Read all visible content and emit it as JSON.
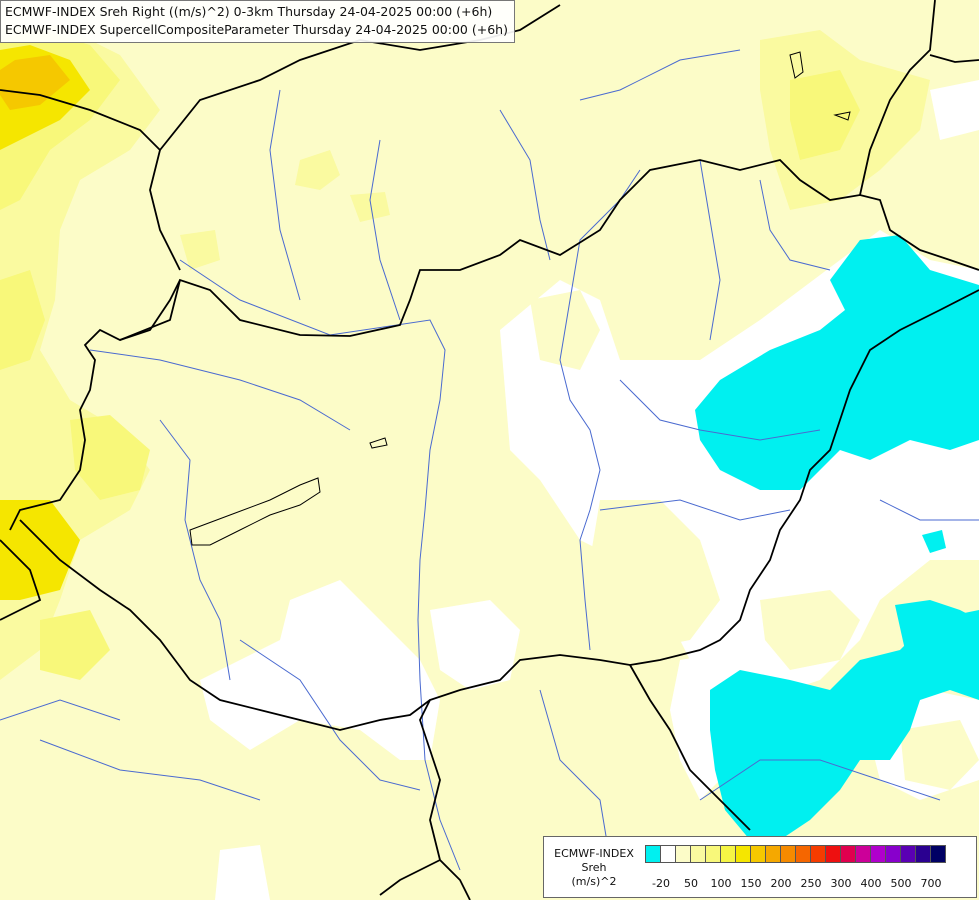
{
  "title_lines": [
    "ECMWF-INDEX Sreh Right ((m/s)^2) 0-3km Thursday 24-04-2025 00:00 (+6h)",
    "ECMWF-INDEX SupercellCompositeParameter Thursday 24-04-2025 00:00 (+6h)"
  ],
  "legend": {
    "title_lines": [
      "ECMWF-INDEX",
      "Sreh",
      "(m/s)^2"
    ],
    "colors": [
      "#00f0f0",
      "#ffffff",
      "#fcfcc8",
      "#fafaa0",
      "#f8f87a",
      "#f5f545",
      "#f5e600",
      "#f5c800",
      "#f5a800",
      "#f58a00",
      "#f56600",
      "#f53c00",
      "#ee1010",
      "#e0004e",
      "#cc0099",
      "#b000cc",
      "#8800cc",
      "#5a00b4",
      "#2a0090",
      "#000064"
    ],
    "ticks": [
      "-20",
      "50",
      "100",
      "150",
      "200",
      "250",
      "300",
      "400",
      "500",
      "700"
    ]
  },
  "colors": {
    "background": "#fcfcc8",
    "cyan_region": "#00f0f0",
    "white_region": "#ffffff",
    "yellow_light": "#fafaa0",
    "yellow_mid": "#f8f87a",
    "yellow_strong": "#f5e600",
    "yellow_dark": "#f5c800",
    "rivers": "#4a6ad0",
    "borders": "#000000"
  }
}
